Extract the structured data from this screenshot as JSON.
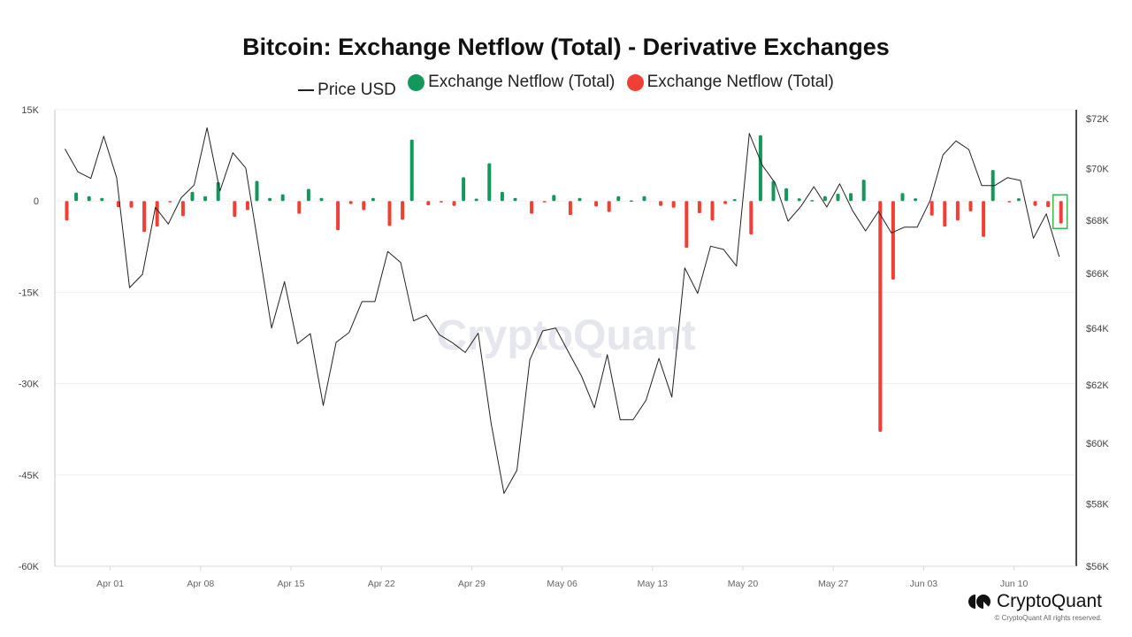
{
  "chart_data": {
    "type": "bar+line",
    "title": "Bitcoin: Exchange Netflow (Total) - Derivative Exchanges",
    "legend": [
      {
        "name": "Price USD",
        "symbol": "line",
        "color": "#222222"
      },
      {
        "name": "Exchange Netflow (Total)",
        "symbol": "dot",
        "color": "#13985c"
      },
      {
        "name": "Exchange Netflow (Total)",
        "symbol": "dot",
        "color": "#f23f36"
      }
    ],
    "legend_position": "top",
    "x": [
      "Mar 28",
      "Mar 29",
      "Mar 30",
      "Mar 31",
      "Apr 01",
      "Apr 02",
      "Apr 03",
      "Apr 04",
      "Apr 05",
      "Apr 06",
      "Apr 07",
      "Apr 08",
      "Apr 09",
      "Apr 10",
      "Apr 11",
      "Apr 12",
      "Apr 13",
      "Apr 14",
      "Apr 15",
      "Apr 16",
      "Apr 17",
      "Apr 18",
      "Apr 19",
      "Apr 20",
      "Apr 21",
      "Apr 22",
      "Apr 23",
      "Apr 24",
      "Apr 25",
      "Apr 26",
      "Apr 27",
      "Apr 28",
      "Apr 29",
      "Apr 30",
      "May 01",
      "May 02",
      "May 03",
      "May 04",
      "May 05",
      "May 06",
      "May 07",
      "May 08",
      "May 09",
      "May 10",
      "May 11",
      "May 12",
      "May 13",
      "May 14",
      "May 15",
      "May 16",
      "May 17",
      "May 18",
      "May 19",
      "May 20",
      "May 21",
      "May 22",
      "May 23",
      "May 24",
      "May 25",
      "May 26",
      "May 27",
      "May 28",
      "May 29",
      "May 30",
      "May 31",
      "Jun 01",
      "Jun 02",
      "Jun 03",
      "Jun 04",
      "Jun 05",
      "Jun 06",
      "Jun 07",
      "Jun 08",
      "Jun 09",
      "Jun 10",
      "Jun 11",
      "Jun 12",
      "Jun 13"
    ],
    "x_ticks": [
      "Apr 01",
      "Apr 08",
      "Apr 15",
      "Apr 22",
      "Apr 29",
      "May 06",
      "May 13",
      "May 20",
      "May 27",
      "Jun 03",
      "Jun 10"
    ],
    "netflow": {
      "unit": "BTC",
      "positive_color": "#13985c",
      "negative_color": "#f23f36",
      "values": [
        -3.2,
        1.4,
        0.8,
        0.5,
        -1.0,
        -1.1,
        -5.1,
        -4.2,
        -0.2,
        -2.5,
        1.5,
        0.8,
        3.1,
        -2.6,
        -1.5,
        3.3,
        0.5,
        1.1,
        -2.1,
        2.0,
        0.5,
        -4.8,
        -0.5,
        -1.5,
        0.5,
        -4.1,
        -3.1,
        10.1,
        -0.7,
        -0.25,
        -0.8,
        3.9,
        0.4,
        6.2,
        1.5,
        0.5,
        -2.1,
        -0.15,
        1.0,
        -2.3,
        0.5,
        -0.9,
        -1.8,
        0.8,
        0.1,
        0.8,
        -0.8,
        -1.1,
        -7.7,
        -2.0,
        -3.2,
        -0.5,
        0.3,
        -5.5,
        10.8,
        3.3,
        2.1,
        0.45,
        0.15,
        0.8,
        1.2,
        1.3,
        3.5,
        -37.9,
        -12.9,
        1.3,
        0.45,
        -2.4,
        -4.2,
        -3.2,
        -1.7,
        -5.9,
        5.1,
        -0.15,
        0.45,
        -0.8,
        -1.0,
        -3.7
      ],
      "value_scale": "thousands",
      "axis": "left",
      "ylim": [
        -60,
        15
      ],
      "ticks": [
        "15K",
        "0",
        "-15K",
        "-30K",
        "-45K",
        "-60K"
      ],
      "tick_values": [
        15,
        0,
        -15,
        -30,
        -45,
        -60
      ]
    },
    "price": {
      "name": "Price USD",
      "color": "#222222",
      "axis": "right",
      "scale": "log",
      "values_k": [
        70.78,
        69.88,
        69.62,
        71.29,
        69.65,
        65.48,
        65.97,
        68.5,
        67.86,
        68.87,
        69.36,
        71.63,
        69.13,
        70.63,
        70.03,
        66.96,
        64.01,
        65.7,
        63.45,
        63.81,
        61.29,
        63.5,
        63.85,
        64.97,
        64.97,
        66.82,
        66.41,
        64.27,
        64.48,
        63.77,
        63.49,
        63.14,
        63.83,
        60.68,
        58.34,
        59.1,
        62.88,
        63.91,
        64.01,
        63.15,
        62.31,
        61.21,
        63.06,
        60.8,
        60.8,
        61.47,
        62.93,
        61.58,
        66.21,
        65.27,
        67.02,
        66.9,
        66.28,
        71.4,
        70.14,
        69.44,
        67.97,
        68.54,
        69.3,
        68.51,
        69.41,
        68.37,
        67.6,
        68.34,
        67.52,
        67.74,
        67.74,
        68.76,
        70.55,
        71.1,
        70.76,
        69.34,
        69.34,
        69.65,
        69.54,
        67.32,
        68.25,
        66.63
      ],
      "ylim": [
        56,
        72
      ],
      "ticks": [
        "$72K",
        "$70K",
        "$68K",
        "$66K",
        "$64K",
        "$62K",
        "$60K",
        "$58K",
        "$56K"
      ],
      "tick_values": [
        72,
        70,
        68,
        66,
        64,
        62,
        60,
        58,
        56
      ]
    },
    "highlight": {
      "date": "Jun 13",
      "color": "#3cb44b"
    },
    "grid": true
  },
  "watermark": "CryptoQuant",
  "brand": {
    "name": "CryptoQuant",
    "copyright": "© CryptoQuant All rights reserved."
  }
}
